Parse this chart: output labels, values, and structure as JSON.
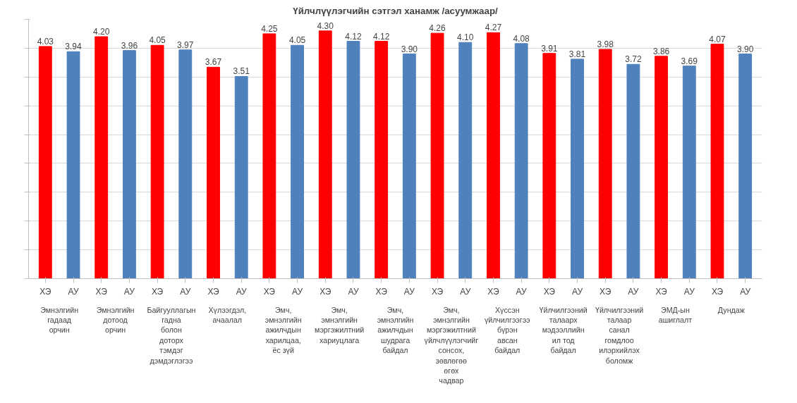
{
  "chart_data": {
    "type": "bar",
    "title": "Үйлчлүүлэгчийн сэтгэл ханамж /асуумжаар/",
    "categories": [
      "ХЭ",
      "АУ",
      "ХЭ",
      "АУ",
      "ХЭ",
      "АУ",
      "ХЭ",
      "АУ",
      "ХЭ",
      "АУ",
      "ХЭ",
      "АУ",
      "ХЭ",
      "АУ",
      "ХЭ",
      "АУ",
      "ХЭ",
      "АУ",
      "ХЭ",
      "АУ",
      "ХЭ",
      "АУ",
      "ХЭ",
      "АУ",
      "ХЭ",
      "АУ"
    ],
    "values": [
      4.03,
      3.94,
      4.2,
      3.96,
      4.05,
      3.97,
      3.67,
      3.51,
      4.25,
      4.05,
      4.3,
      4.12,
      4.12,
      3.9,
      4.26,
      4.1,
      4.27,
      4.08,
      3.91,
      3.81,
      3.98,
      3.72,
      3.86,
      3.69,
      4.07,
      3.9
    ],
    "value_labels": [
      "4.03",
      "3.94",
      "4.20",
      "3.96",
      "4.05",
      "3.97",
      "3.67",
      "3.51",
      "4.25",
      "4.05",
      "4.30",
      "4.12",
      "4.12",
      "3.90",
      "4.26",
      "4.10",
      "4.27",
      "4.08",
      "3.91",
      "3.81",
      "3.98",
      "3.72",
      "3.86",
      "3.69",
      "4.07",
      "3.90"
    ],
    "colors": [
      "#ff0000",
      "#4f81bd",
      "#ff0000",
      "#4f81bd",
      "#ff0000",
      "#4f81bd",
      "#ff0000",
      "#4f81bd",
      "#ff0000",
      "#4f81bd",
      "#ff0000",
      "#4f81bd",
      "#ff0000",
      "#4f81bd",
      "#ff0000",
      "#4f81bd",
      "#ff0000",
      "#4f81bd",
      "#ff0000",
      "#4f81bd",
      "#ff0000",
      "#4f81bd",
      "#ff0000",
      "#4f81bd",
      "#ff0000",
      "#4f81bd"
    ],
    "annotations": [
      "Эмнэлгийн гадаад орчин",
      "Эмнэлгийн дотоод орчин",
      "Байгууллагын гадна болон доторх тэмдэг дэмдэглэгээ",
      "Хүлээгдэл, ачаалал",
      "Эмч, эмнэлгийн ажилчдын харилцаа, ёс зүй",
      "Эмч, эмнэлгийн мэргэжилтний хариуцлага",
      "Эмч, эмнэлгийн ажилчдын шудрага байдал",
      "Эмч, эмнэлгийн мэргэжилтний үйлчлүүлэгчийг сонсох, зөвлөгөө өгөх чадвар",
      "Хүссэн үйлчилгээгээ бүрэн авсан байдал",
      "Үйлчилгээний талаарх мэдээллийн ил тод байдал",
      "Үйлчилгээний талаар санал гомдлоо илэрхийлэх боломж",
      "ЭМД-ын ашиглалт",
      "Дундаж"
    ],
    "ylim": [
      0,
      4.5
    ],
    "yticks": [
      {
        "value": 0,
        "label": null
      },
      {
        "value": 0.5,
        "label": null
      },
      {
        "value": 1,
        "label": null
      },
      {
        "value": 1.5,
        "label": null
      },
      {
        "value": 2,
        "label": null
      },
      {
        "value": 2.5,
        "label": null
      },
      {
        "value": 3,
        "label": null
      },
      {
        "value": 3.5,
        "label": null
      },
      {
        "value": 4,
        "label": null
      },
      {
        "value": 4.5,
        "label": null
      }
    ],
    "grid": "y"
  }
}
